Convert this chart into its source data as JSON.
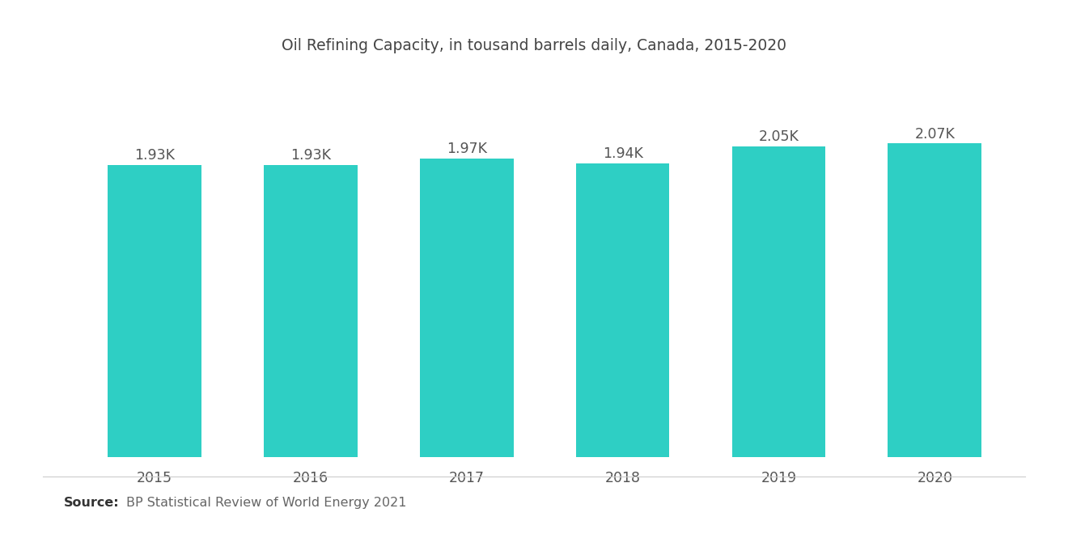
{
  "title": "Oil Refining Capacity, in tousand barrels daily, Canada, 2015-2020",
  "categories": [
    "2015",
    "2016",
    "2017",
    "2018",
    "2019",
    "2020"
  ],
  "values": [
    1930,
    1930,
    1970,
    1940,
    2050,
    2070
  ],
  "labels": [
    "1.93K",
    "1.93K",
    "1.97K",
    "1.94K",
    "2.05K",
    "2.07K"
  ],
  "bar_color": "#2ecfc4",
  "background_color": "#ffffff",
  "source_bold": "Source:",
  "source_text": "BP Statistical Review of World Energy 2021",
  "title_fontsize": 13.5,
  "label_fontsize": 12.5,
  "tick_fontsize": 12.5,
  "source_fontsize": 11.5,
  "bar_width": 0.6,
  "ylim_min": 0,
  "ylim_max": 2200
}
